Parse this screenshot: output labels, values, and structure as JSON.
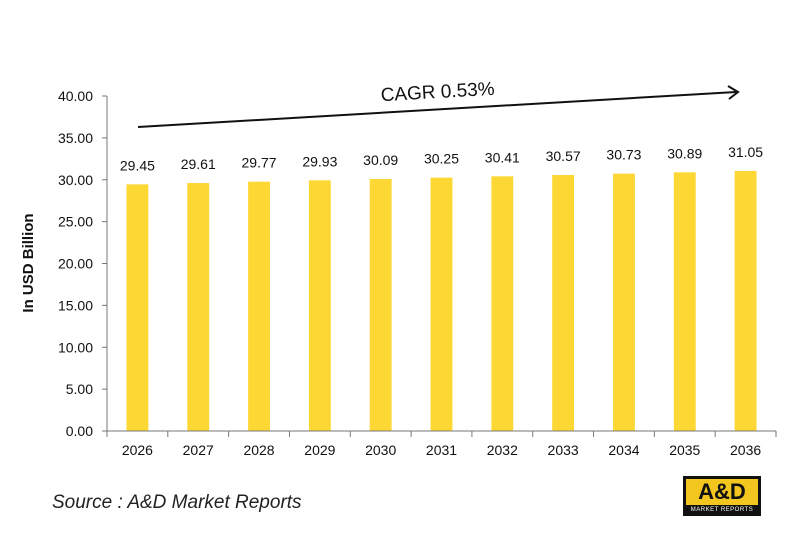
{
  "chart_data": {
    "type": "bar",
    "categories": [
      "2026",
      "2027",
      "2028",
      "2029",
      "2030",
      "2031",
      "2032",
      "2033",
      "2034",
      "2035",
      "2036"
    ],
    "values": [
      29.45,
      29.61,
      29.77,
      29.93,
      30.09,
      30.25,
      30.41,
      30.57,
      30.73,
      30.89,
      31.05
    ],
    "value_labels": [
      "29.45",
      "29.61",
      "29.77",
      "29.93",
      "30.09",
      "30.25",
      "30.41",
      "30.57",
      "30.73",
      "30.89",
      "31.05"
    ],
    "ylabel": "In USD Billion",
    "ylim": [
      0,
      40
    ],
    "yticks": [
      "0.00",
      "5.00",
      "10.00",
      "15.00",
      "20.00",
      "25.00",
      "30.00",
      "35.00",
      "40.00"
    ],
    "grid": false,
    "bar_color": "#fdd835",
    "annotation": "CAGR 0.53%"
  },
  "source": "Source : A&D Market Reports",
  "logo": {
    "main": "A&D",
    "sub": "MARKET REPORTS",
    "accent_color": "#f2c61f"
  }
}
